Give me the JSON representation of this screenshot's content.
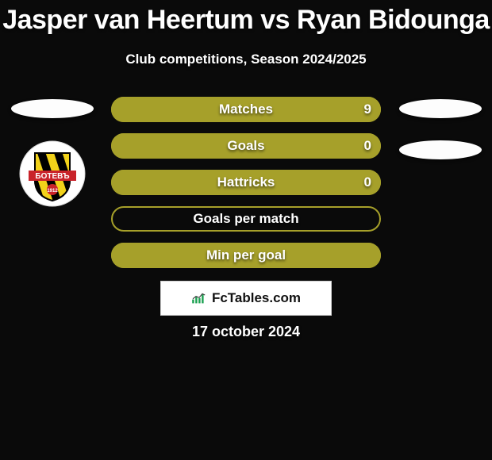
{
  "title": "Jasper van Heertum vs Ryan Bidounga",
  "subtitle": "Club competitions, Season 2024/2025",
  "date": "17 october 2024",
  "brand": {
    "text": "FcTables.com",
    "icon_bar_color": "#1aa050"
  },
  "bar_style": {
    "border_color": "#a6a02a",
    "fill_color": "#a6a02a",
    "empty_full_fill": "#a6a02a"
  },
  "stats": [
    {
      "label": "Matches",
      "left_value": "",
      "right_value": "9",
      "left_width_pct": 0,
      "right_width_pct": 100
    },
    {
      "label": "Goals",
      "left_value": "",
      "right_value": "0",
      "left_width_pct": 100,
      "right_width_pct": 0
    },
    {
      "label": "Hattricks",
      "left_value": "",
      "right_value": "0",
      "left_width_pct": 100,
      "right_width_pct": 0
    },
    {
      "label": "Goals per match",
      "left_value": "",
      "right_value": "",
      "left_width_pct": 0,
      "right_width_pct": 0
    },
    {
      "label": "Min per goal",
      "left_value": "",
      "right_value": "",
      "left_width_pct": 100,
      "right_width_pct": 100
    }
  ],
  "left_player": {
    "ellipse_color": "#fdfdfd",
    "club_badge": {
      "circle_color": "#ffffff",
      "name_text": "БОТЕВЪ",
      "name_bg": "#c9232a",
      "shield_stripes": [
        "#000000",
        "#f2d21a"
      ],
      "year": "1912"
    }
  },
  "right_player": {
    "ellipse_color": "#fdfdfd"
  }
}
